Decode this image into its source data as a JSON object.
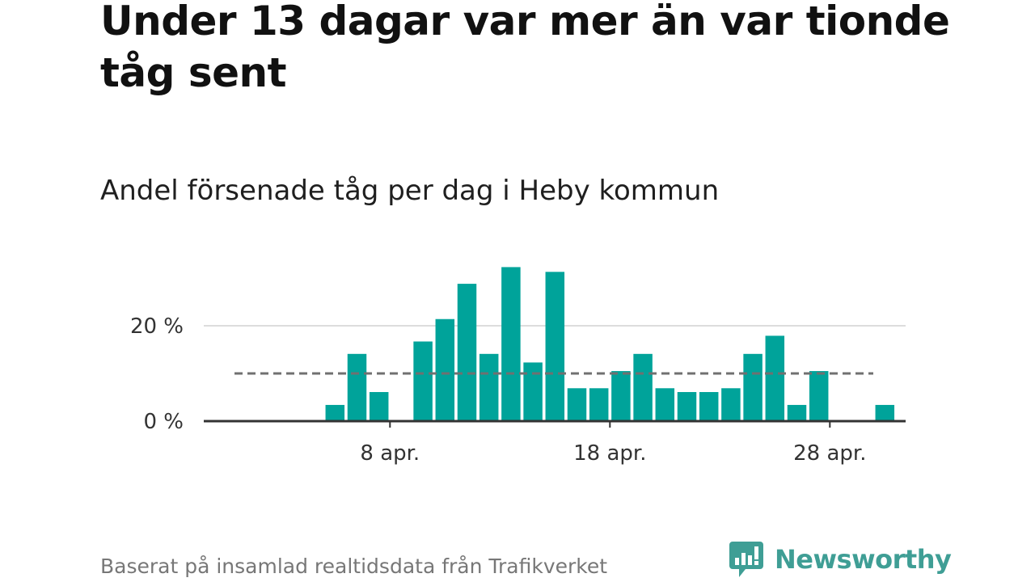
{
  "header": {
    "title": "Under 13 dagar var mer än var tionde tåg sent",
    "subtitle": "Andel försenade tåg per dag i Heby kommun"
  },
  "footer": {
    "source": "Baserat på insamlad realtidsdata från Trafikverket",
    "brand": "Newsworthy",
    "brand_icon": "newsworthy-logo-icon"
  },
  "colors": {
    "bar": "#00a39a",
    "reference_line": "#707070",
    "grid": "#dddddd",
    "axis": "#333333",
    "brand": "#3f9e95"
  },
  "chart_data": {
    "type": "bar",
    "x_unit": "day of April",
    "x": [
      1,
      2,
      3,
      4,
      5,
      6,
      7,
      8,
      9,
      10,
      11,
      12,
      13,
      14,
      15,
      16,
      17,
      18,
      19,
      20,
      21,
      22,
      23,
      24,
      25,
      26,
      27,
      28,
      29,
      30
    ],
    "values": [
      0,
      0,
      0,
      0,
      3.4,
      14.1,
      6.1,
      0,
      16.7,
      21.4,
      28.8,
      14.1,
      32.3,
      12.3,
      31.3,
      6.9,
      6.9,
      10.5,
      14.1,
      6.9,
      6.1,
      6.1,
      6.9,
      14.1,
      17.9,
      3.4,
      10.5,
      0,
      0,
      3.4
    ],
    "reference_line": 10,
    "y_ticks": [
      {
        "value": 0,
        "label": "0 %"
      },
      {
        "value": 20,
        "label": "20 %"
      }
    ],
    "x_ticks": [
      {
        "value": 8,
        "label": "8 apr."
      },
      {
        "value": 18,
        "label": "18 apr."
      },
      {
        "value": 28,
        "label": "28 apr."
      }
    ],
    "ylim": [
      0,
      35
    ],
    "grid": "horizontal"
  }
}
